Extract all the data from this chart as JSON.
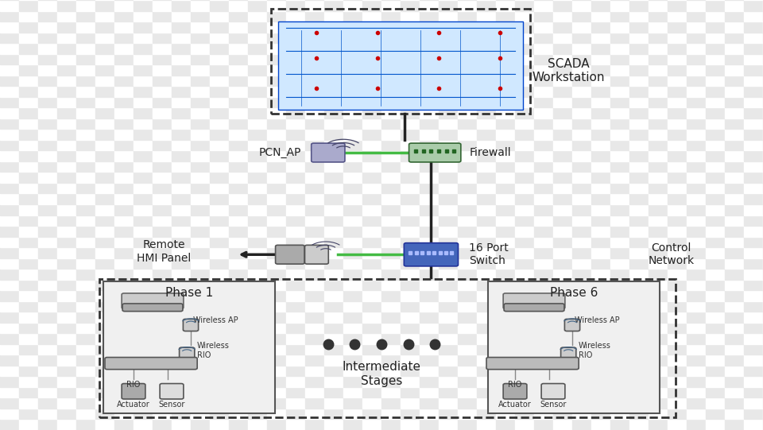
{
  "bg_color": "#ffffff",
  "checker_color1": "#e8e8e8",
  "checker_color2": "#ffffff",
  "scada_label": "SCADA\nWorkstation",
  "pcn_ap_label": "PCN_AP",
  "firewall_label": "Firewall",
  "switch_label": "16 Port\nSwitch",
  "remote_hmi_label": "Remote\nHMI Panel",
  "control_network_label": "Control\nNetwork",
  "phase1_label": "Phase 1",
  "phase6_label": "Phase 6",
  "intermediate_label": "Intermediate\nStages",
  "wireless_ap_label": "Wireless AP",
  "wireless_rio_label": "Wireless\nRIO",
  "rio_label": "RIO",
  "actuator_label": "Actuator",
  "sensor_label": "Sensor"
}
